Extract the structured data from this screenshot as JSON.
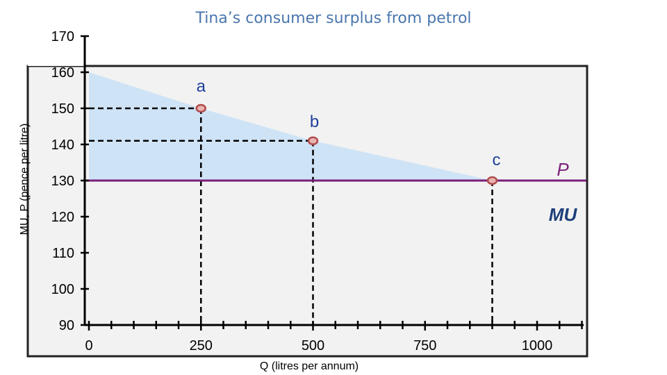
{
  "chart_data": {
    "type": "line",
    "title": "Tina’s consumer surplus from petrol",
    "xlabel": "Q (litres per annum)",
    "ylabel": "MU, P (pence per litre)",
    "xlim": [
      0,
      1100
    ],
    "ylim": [
      90,
      170
    ],
    "x_ticks": [
      "0",
      "250",
      "500",
      "750",
      "1000"
    ],
    "x_tick_values": [
      0,
      250,
      500,
      750,
      1000
    ],
    "y_ticks": [
      "170",
      "160",
      "150",
      "140",
      "130",
      "120",
      "110",
      "100",
      "90"
    ],
    "y_tick_values": [
      170,
      160,
      150,
      140,
      130,
      120,
      110,
      100,
      90
    ],
    "series": [
      {
        "name": "MU",
        "x": [
          0,
          250,
          500,
          900
        ],
        "y": [
          160,
          150,
          141,
          130
        ],
        "color": "#cfe3f6"
      },
      {
        "name": "P",
        "x": [
          0,
          1110
        ],
        "y": [
          130,
          130
        ],
        "color": "#7a1f7a"
      }
    ],
    "points": [
      {
        "label": "a",
        "x": 250,
        "y": 150
      },
      {
        "label": "b",
        "x": 500,
        "y": 141
      },
      {
        "label": "c",
        "x": 900,
        "y": 130
      }
    ],
    "series_labels": {
      "P": "P",
      "MU": "MU"
    },
    "shaded_area": "consumer surplus between MU curve and P line",
    "colors": {
      "title": "#4a76ad",
      "surplus_fill": "#cfe3f6",
      "price_line": "#7a1f7a",
      "marker_fill": "#e8b4b0",
      "marker_stroke": "#b04a4a",
      "point_label": "#1f3f99",
      "plot_bg": "#f2f2f2"
    },
    "grid": false,
    "legend": "none"
  }
}
